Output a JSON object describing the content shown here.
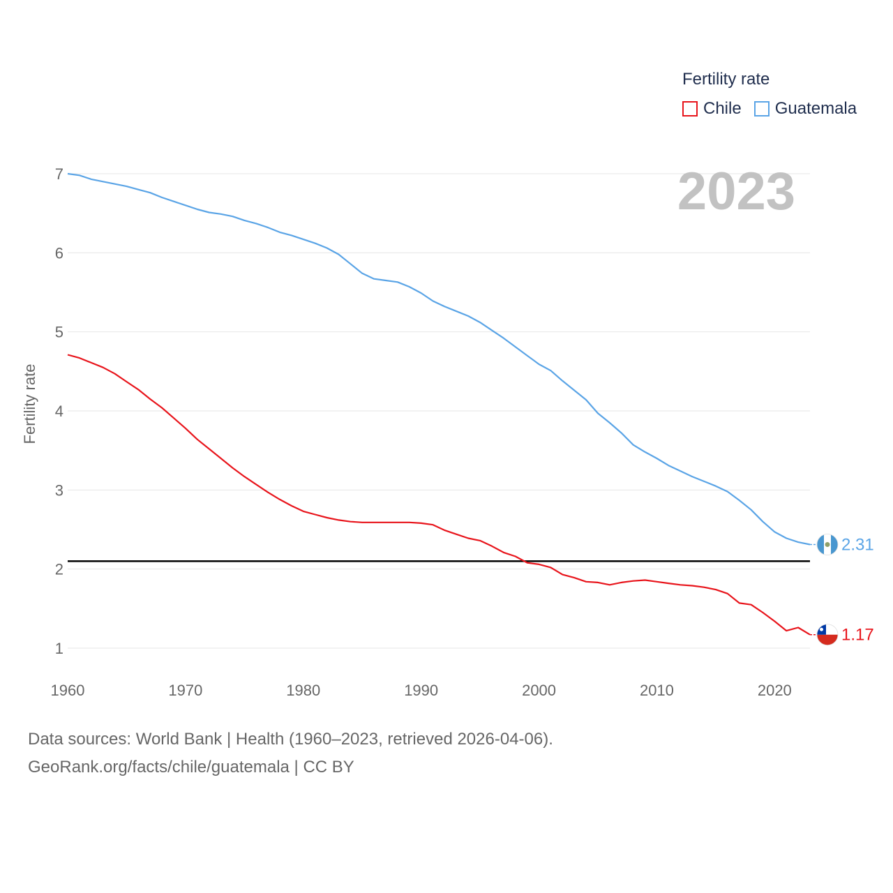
{
  "legend": {
    "title": "Fertility rate",
    "items": [
      {
        "name": "Chile",
        "color": "#e8141b"
      },
      {
        "name": "Guatemala",
        "color": "#5aa4e6"
      }
    ]
  },
  "year_label": "2023",
  "footer": {
    "line1": "Data sources: World Bank | Health (1960–2023, retrieved 2026-04-06).",
    "line2": "GeoRank.org/facts/chile/guatemala | CC BY"
  },
  "chart_data": {
    "type": "line",
    "title": "Fertility rate",
    "xlabel": "",
    "ylabel": "Fertility rate",
    "xlim": [
      1960,
      2023
    ],
    "ylim": [
      0.6,
      7.2
    ],
    "xticks": [
      1960,
      1970,
      1980,
      1990,
      2000,
      2010,
      2020
    ],
    "yticks": [
      1,
      2,
      3,
      4,
      5,
      6,
      7
    ],
    "reference_line": 2.1,
    "x": [
      1960,
      1961,
      1962,
      1963,
      1964,
      1965,
      1966,
      1967,
      1968,
      1969,
      1970,
      1971,
      1972,
      1973,
      1974,
      1975,
      1976,
      1977,
      1978,
      1979,
      1980,
      1981,
      1982,
      1983,
      1984,
      1985,
      1986,
      1987,
      1988,
      1989,
      1990,
      1991,
      1992,
      1993,
      1994,
      1995,
      1996,
      1997,
      1998,
      1999,
      2000,
      2001,
      2002,
      2003,
      2004,
      2005,
      2006,
      2007,
      2008,
      2009,
      2010,
      2011,
      2012,
      2013,
      2014,
      2015,
      2016,
      2017,
      2018,
      2019,
      2020,
      2021,
      2022,
      2023
    ],
    "series": [
      {
        "name": "Chile",
        "color": "#e8141b",
        "end_label": "1.17",
        "values": [
          4.71,
          4.67,
          4.61,
          4.55,
          4.47,
          4.37,
          4.27,
          4.15,
          4.04,
          3.91,
          3.78,
          3.64,
          3.52,
          3.4,
          3.28,
          3.17,
          3.07,
          2.97,
          2.88,
          2.8,
          2.73,
          2.69,
          2.65,
          2.62,
          2.6,
          2.59,
          2.59,
          2.59,
          2.59,
          2.59,
          2.58,
          2.56,
          2.49,
          2.44,
          2.39,
          2.36,
          2.29,
          2.21,
          2.16,
          2.08,
          2.06,
          2.02,
          1.93,
          1.89,
          1.84,
          1.83,
          1.8,
          1.83,
          1.85,
          1.86,
          1.84,
          1.82,
          1.8,
          1.79,
          1.77,
          1.74,
          1.69,
          1.57,
          1.55,
          1.45,
          1.34,
          1.22,
          1.26,
          1.17
        ]
      },
      {
        "name": "Guatemala",
        "color": "#5aa4e6",
        "end_label": "2.31",
        "values": [
          7.0,
          6.98,
          6.93,
          6.9,
          6.87,
          6.84,
          6.8,
          6.76,
          6.7,
          6.65,
          6.6,
          6.55,
          6.51,
          6.49,
          6.46,
          6.41,
          6.37,
          6.32,
          6.26,
          6.22,
          6.17,
          6.12,
          6.06,
          5.98,
          5.86,
          5.74,
          5.67,
          5.65,
          5.63,
          5.57,
          5.49,
          5.39,
          5.32,
          5.26,
          5.2,
          5.12,
          5.02,
          4.92,
          4.81,
          4.7,
          4.59,
          4.51,
          4.38,
          4.26,
          4.14,
          3.97,
          3.85,
          3.72,
          3.57,
          3.48,
          3.4,
          3.31,
          3.24,
          3.17,
          3.11,
          3.05,
          2.98,
          2.87,
          2.75,
          2.6,
          2.47,
          2.39,
          2.34,
          2.31
        ]
      }
    ]
  }
}
